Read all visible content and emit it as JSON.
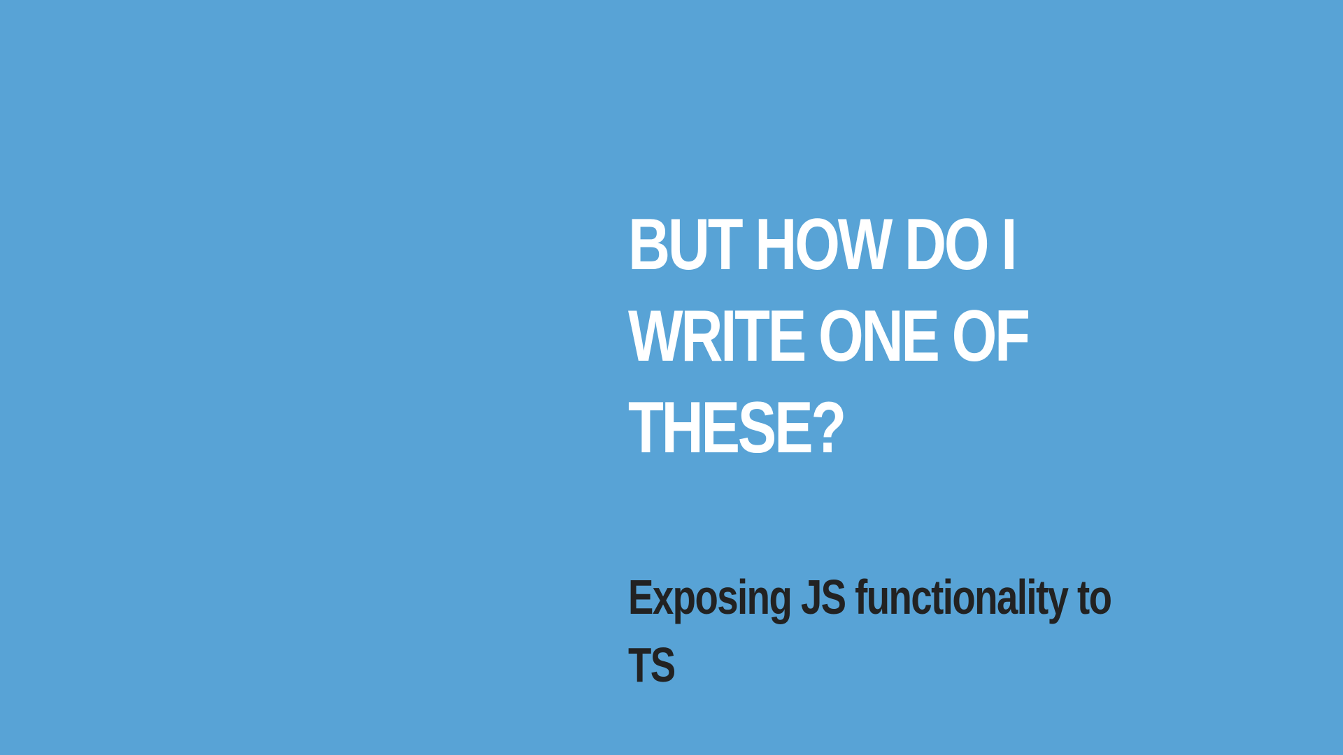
{
  "slide": {
    "title_lines": [
      "BUT HOW DO I",
      "WRITE ONE OF",
      "THESE?"
    ],
    "subtitle_lines": [
      "Exposing JS functionality to",
      "TS"
    ],
    "colors": {
      "background": "#58a3d6",
      "title": "#ffffff",
      "subtitle": "#222222"
    }
  }
}
